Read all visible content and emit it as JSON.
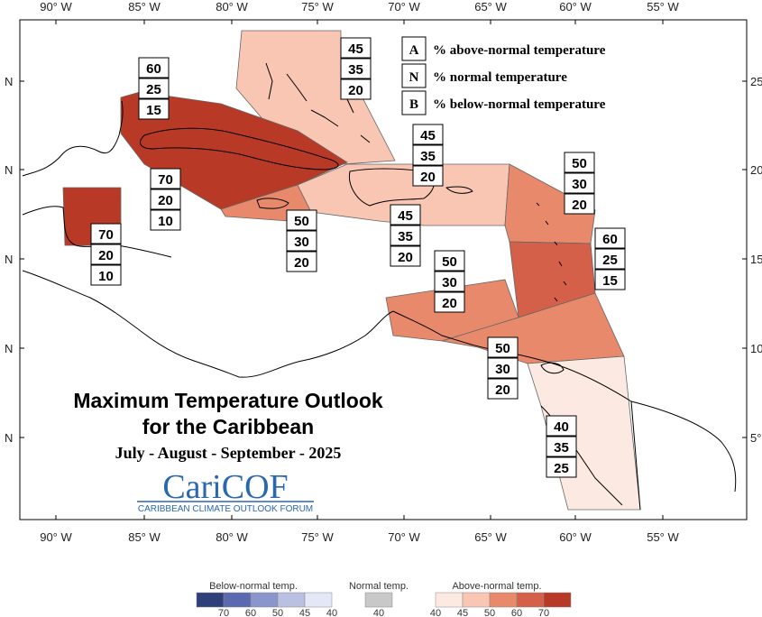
{
  "map": {
    "lon_top_labels": [
      "90° W",
      "85° W",
      "80° W",
      "75° W",
      "70° W",
      "65° W",
      "60° W",
      "55° W"
    ],
    "lon_bottom_labels": [
      "90° W",
      "85° W",
      "80° W",
      "75° W",
      "70° W",
      "65° W",
      "60° W",
      "55° W"
    ],
    "lat_left_labels": [
      "N",
      "N",
      "N",
      "N",
      "N"
    ],
    "lat_right_labels": [
      "25",
      "20",
      "15",
      "10",
      "5°"
    ],
    "region_colors": {
      "above_40": "#fce9e1",
      "above_45": "#f8c6b3",
      "above_50": "#e8896b",
      "above_60": "#d4604a",
      "above_70": "#b83a26"
    }
  },
  "key": {
    "rows": [
      {
        "letter": "A",
        "text": "% above-normal temperature"
      },
      {
        "letter": "N",
        "text": "% normal temperature"
      },
      {
        "letter": "B",
        "text": "% below-normal temperature"
      }
    ]
  },
  "regions": [
    {
      "name": "bahamas",
      "above": 45,
      "normal": 35,
      "below": 20
    },
    {
      "name": "cuba-north",
      "above": 60,
      "normal": 25,
      "below": 15
    },
    {
      "name": "cuba-south",
      "above": 70,
      "normal": 20,
      "below": 10
    },
    {
      "name": "belize",
      "above": 70,
      "normal": 20,
      "below": 10
    },
    {
      "name": "jamaica",
      "above": 50,
      "normal": 30,
      "below": 20
    },
    {
      "name": "hispaniola-north",
      "above": 45,
      "normal": 35,
      "below": 20
    },
    {
      "name": "hispaniola-south",
      "above": 45,
      "normal": 35,
      "below": 20
    },
    {
      "name": "leeward-islands",
      "above": 50,
      "normal": 30,
      "below": 20
    },
    {
      "name": "windward-islands",
      "above": 60,
      "normal": 25,
      "below": 15
    },
    {
      "name": "abc-islands",
      "above": 50,
      "normal": 30,
      "below": 20
    },
    {
      "name": "trinidad",
      "above": 50,
      "normal": 30,
      "below": 20
    },
    {
      "name": "guianas",
      "above": 40,
      "normal": 35,
      "below": 25
    }
  ],
  "title": {
    "line1": "Maximum Temperature Outlook",
    "line2": "for the Caribbean",
    "season": "July - August - September - 2025"
  },
  "logo": {
    "text_main": "CariCOF",
    "text_sub": "CARIBBEAN CLIMATE OUTLOOK FORUM"
  },
  "legend": {
    "below_title": "Below-normal temp.",
    "normal_title": "Normal temp.",
    "above_title": "Above-normal temp.",
    "below_ticks": [
      "70",
      "60",
      "50",
      "45",
      "40"
    ],
    "normal_ticks": [
      "40"
    ],
    "above_ticks": [
      "40",
      "45",
      "50",
      "60",
      "70"
    ],
    "below_colors": [
      "#2f3f7a",
      "#5a69b0",
      "#8a95cc",
      "#b9c0e2",
      "#e4e8f6"
    ],
    "normal_color": "#c8c8c8",
    "above_colors": [
      "#fce9e1",
      "#f8c6b3",
      "#e8896b",
      "#d4604a",
      "#b83a26"
    ]
  }
}
